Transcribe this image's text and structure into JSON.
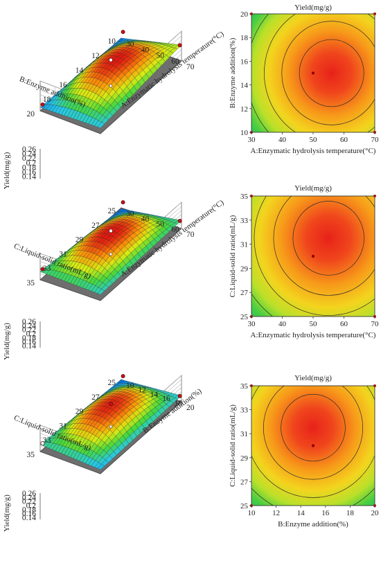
{
  "chart_data": [
    {
      "type": "surface3d",
      "zlabel": "Yield(mg/g)",
      "zticks": [
        "0.14",
        "0.16",
        "0.18",
        "0.2",
        "0.22",
        "0.24",
        "0.26"
      ],
      "zlim": [
        0.13,
        0.26
      ],
      "xlabel": "A:Enzymatic hydrolysis temperature(°C)",
      "xticks": [
        "30",
        "40",
        "50",
        "60",
        "70"
      ],
      "ylabel": "B:Enzyme addition(%)",
      "yticks": [
        "10",
        "12",
        "14",
        "16",
        "18",
        "20"
      ],
      "peak": 0.245,
      "corner_values": {
        "near": 0.13,
        "left": 0.145,
        "right": 0.2,
        "back": 0.155
      },
      "design_points": [
        0.243,
        0.205,
        0.148,
        0.16
      ]
    },
    {
      "type": "contour",
      "title": "Yield(mg/g)",
      "xlabel": "A:Enzymatic hydrolysis temperature(°C)",
      "xticks": [
        "30",
        "40",
        "50",
        "60",
        "70"
      ],
      "xlim": [
        30,
        70
      ],
      "ylabel": "B:Enzyme addition(%)",
      "yticks": [
        "10",
        "12",
        "14",
        "16",
        "18",
        "20"
      ],
      "ylim": [
        10,
        20
      ],
      "center": [
        56,
        15
      ],
      "center_point": [
        50,
        15
      ],
      "levels": 5
    },
    {
      "type": "surface3d",
      "zlabel": "Yield(mg/g)",
      "zticks": [
        "0.14",
        "0.16",
        "0.18",
        "0.2",
        "0.22",
        "0.24",
        "0.26"
      ],
      "zlim": [
        0.13,
        0.26
      ],
      "xlabel": "A:Enzymatic hydrolysis temperature(°C)",
      "xticks": [
        "30",
        "40",
        "50",
        "60",
        "70"
      ],
      "ylabel": "C:Liquid-solid ratio(mL/g)",
      "yticks": [
        "25",
        "27",
        "29",
        "31",
        "33",
        "35"
      ],
      "peak": 0.247,
      "corner_values": {
        "near": 0.125,
        "left": 0.17,
        "right": 0.17,
        "back": 0.16
      },
      "design_points": [
        0.245,
        0.175,
        0.172,
        0.16
      ]
    },
    {
      "type": "contour",
      "title": "Yield(mg/g)",
      "xlabel": "A:Enzymatic hydrolysis temperature(°C)",
      "xticks": [
        "30",
        "40",
        "50",
        "60",
        "70"
      ],
      "xlim": [
        30,
        70
      ],
      "ylabel": "C:Liquid-solid ratio(mL/g)",
      "yticks": [
        "25",
        "27",
        "29",
        "31",
        "33",
        "35"
      ],
      "ylim": [
        25,
        35
      ],
      "center": [
        55,
        31.5
      ],
      "center_point": [
        50,
        30
      ],
      "levels": 5
    },
    {
      "type": "surface3d",
      "zlabel": "Yield(mg/g)",
      "zticks": [
        "0.14",
        "0.16",
        "0.18",
        "0.2",
        "0.22",
        "0.24",
        "0.26"
      ],
      "zlim": [
        0.13,
        0.26
      ],
      "xlabel": "B:Enzyme addition(%)",
      "xticks": [
        "10",
        "12",
        "14",
        "16",
        "18",
        "20"
      ],
      "ylabel": "C:Liquid-solid ratio(mL/g)",
      "yticks": [
        "25",
        "27",
        "29",
        "31",
        "33",
        "35"
      ],
      "peak": 0.244,
      "corner_values": {
        "near": 0.13,
        "left": 0.165,
        "right": 0.16,
        "back": 0.15
      },
      "design_points": [
        0.243,
        0.165,
        0.16,
        0.15
      ]
    },
    {
      "type": "contour",
      "title": "Yield(mg/g)",
      "xlabel": "B:Enzyme addition(%)",
      "xticks": [
        "10",
        "12",
        "14",
        "16",
        "18",
        "20"
      ],
      "xlim": [
        10,
        20
      ],
      "ylabel": "C:Liquid-solid ratio(mL/g)",
      "yticks": [
        "25",
        "27",
        "29",
        "31",
        "33",
        "35"
      ],
      "ylim": [
        25,
        35
      ],
      "center": [
        15,
        31.5
      ],
      "center_point": [
        15,
        30
      ],
      "levels": 5
    }
  ]
}
